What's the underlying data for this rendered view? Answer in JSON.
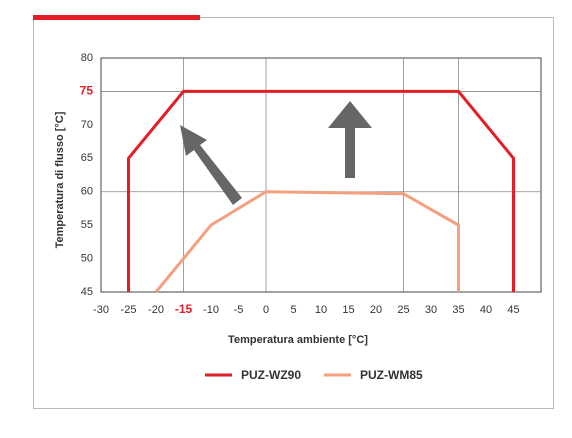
{
  "chart_data": {
    "type": "line",
    "x_label": "Temperatura ambiente [°C]",
    "y_label": "Temperatura di flusso [°C]",
    "series": [
      {
        "name": "PUZ-WZ90",
        "color": "#e31e24",
        "x": [
          -25,
          -25,
          -15,
          35,
          45,
          45
        ],
        "values": [
          45,
          65,
          75,
          75,
          65,
          45
        ]
      },
      {
        "name": "PUZ-WM85",
        "color": "#f4a07f",
        "x": [
          -20,
          -10,
          0,
          25,
          35,
          35
        ],
        "values": [
          45,
          55,
          60,
          59.7,
          55,
          45
        ]
      }
    ],
    "xlim": [
      -30,
      50
    ],
    "ylim": [
      45,
      80
    ],
    "xticks": [
      -30,
      -25,
      -20,
      -15,
      -10,
      -5,
      0,
      5,
      10,
      15,
      20,
      25,
      30,
      35,
      40,
      45
    ],
    "yticks": [
      45,
      50,
      55,
      60,
      65,
      70,
      75,
      80
    ],
    "xgrid": [
      -15,
      0,
      25,
      35
    ],
    "ygrid": [
      60,
      75
    ],
    "highlight_color": "#e31e24",
    "x_highlight": -15,
    "y_highlight": 75,
    "legend": "bottom"
  }
}
